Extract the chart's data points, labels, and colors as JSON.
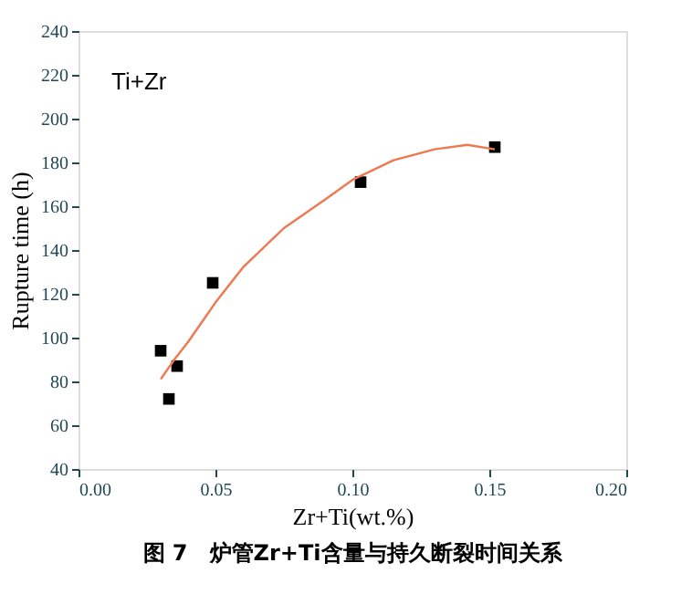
{
  "chart_data": {
    "type": "scatter",
    "title": "图 7　炉管Zr+Ti含量与持久断裂时间关系",
    "xlabel": "Zr+Ti(wt.%)",
    "ylabel": "Rupture time (h)",
    "xlim": [
      0,
      0.2
    ],
    "xticks": [
      {
        "value": 0,
        "label": "0.00"
      },
      {
        "value": 0.05,
        "label": "0.05"
      },
      {
        "value": 0.1,
        "label": "0.10"
      },
      {
        "value": 0.15,
        "label": "0.15"
      },
      {
        "value": 0.2,
        "label": "0.20"
      }
    ],
    "ylim": [
      40,
      240
    ],
    "yticks": [
      40,
      60,
      80,
      100,
      120,
      140,
      160,
      180,
      200,
      220,
      240
    ],
    "series": [
      {
        "color": "#000000",
        "marker": "square",
        "x": [
          0.03,
          0.033,
          0.036,
          0.049,
          0.103,
          0.152
        ],
        "values": [
          94,
          72,
          87,
          125,
          171,
          187
        ]
      },
      {
        "type": "line",
        "color": "#f07850",
        "line_style": "solid",
        "x": [
          0.03,
          0.035,
          0.04,
          0.045,
          0.05,
          0.06,
          0.075,
          0.09,
          0.1,
          0.115,
          0.13,
          0.142,
          0.152
        ],
        "values": [
          81,
          90,
          98,
          107,
          116,
          132,
          150,
          163,
          172,
          181,
          186,
          188,
          186
        ]
      }
    ],
    "annotations": [
      "Ti+Zr"
    ],
    "grid": false
  }
}
